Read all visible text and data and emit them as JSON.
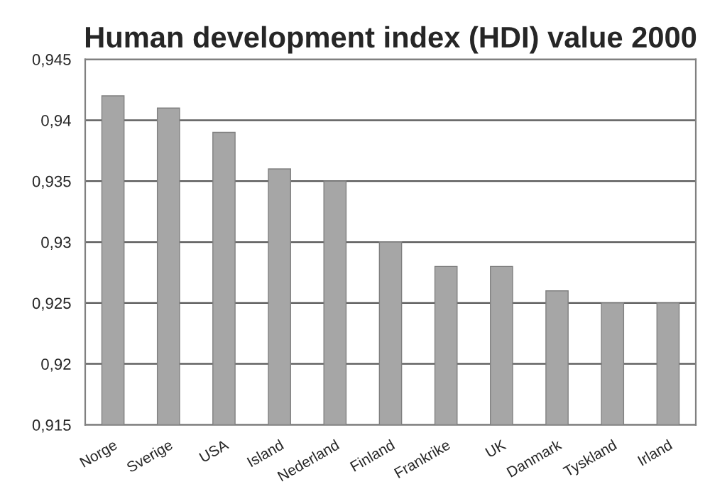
{
  "chart_data": {
    "type": "bar",
    "title": "Human development index (HDI) value 2000",
    "categories": [
      "Norge",
      "Sverige",
      "USA",
      "Island",
      "Nederland",
      "Finland",
      "Frankrike",
      "UK",
      "Danmark",
      "Tyskland",
      "Irland"
    ],
    "values": [
      0.942,
      0.941,
      0.939,
      0.936,
      0.935,
      0.93,
      0.928,
      0.928,
      0.926,
      0.925,
      0.925
    ],
    "color": "#a6a6a6",
    "ylim": [
      0.915,
      0.945
    ],
    "yticks": [
      {
        "value": 0.915,
        "label": "0,915"
      },
      {
        "value": 0.92,
        "label": "0,92"
      },
      {
        "value": 0.925,
        "label": "0,925"
      },
      {
        "value": 0.93,
        "label": "0,93"
      },
      {
        "value": 0.935,
        "label": "0,935"
      },
      {
        "value": 0.94,
        "label": "0,94"
      },
      {
        "value": 0.945,
        "label": "0,945"
      }
    ],
    "grid": "y",
    "legend": false
  }
}
